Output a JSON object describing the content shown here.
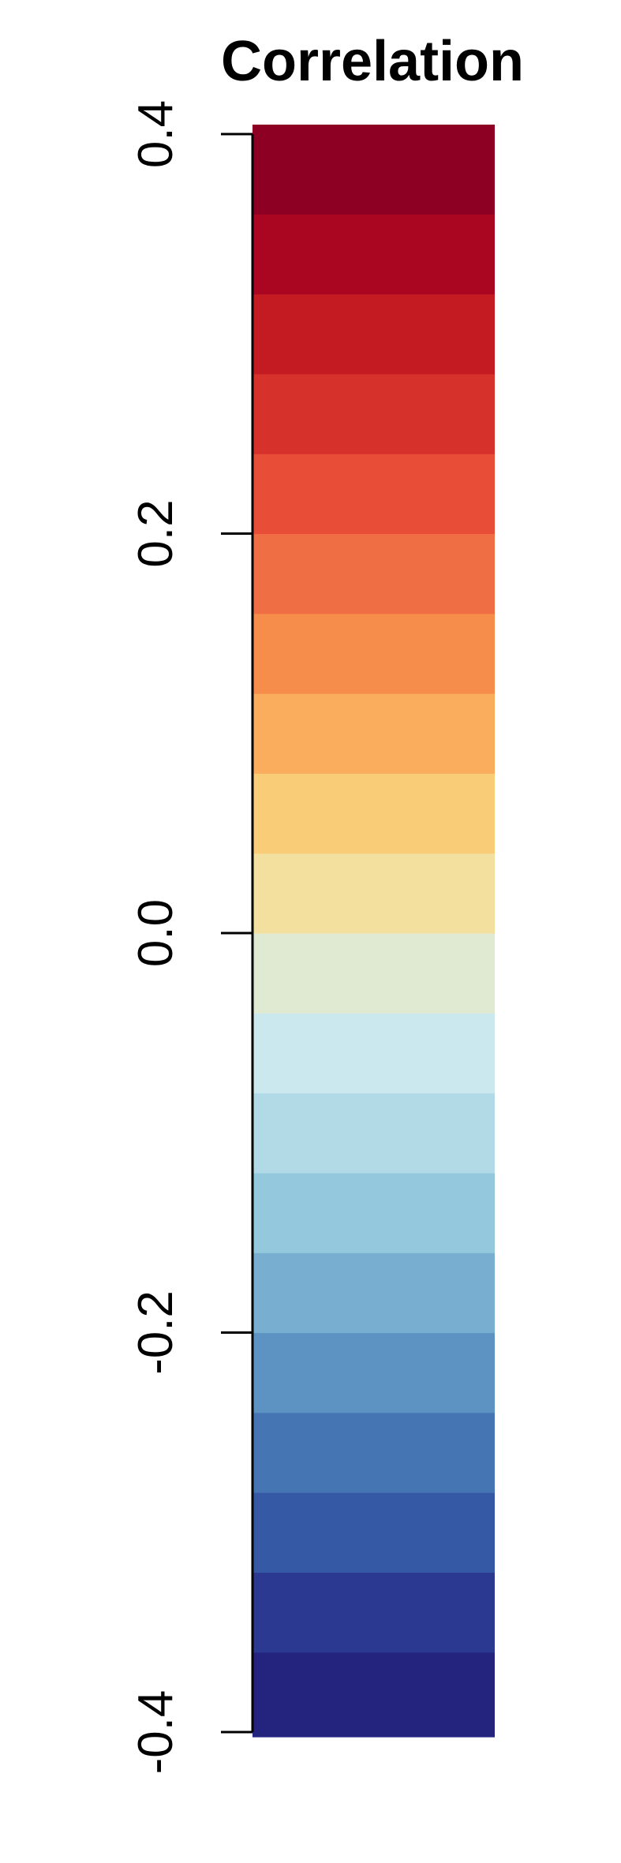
{
  "chart_data": {
    "type": "heatmap",
    "title": "Correlation",
    "xlabel": "",
    "ylabel": "",
    "ylim": [
      -0.4,
      0.4
    ],
    "ticks": [
      {
        "value": 0.4,
        "label": "0.4"
      },
      {
        "value": 0.2,
        "label": "0.2"
      },
      {
        "value": 0.0,
        "label": "0.0"
      },
      {
        "value": -0.2,
        "label": "-0.2"
      },
      {
        "value": -0.4,
        "label": "-0.4"
      }
    ],
    "grid": false,
    "bins": [
      {
        "from": -0.4,
        "to": -0.36,
        "color": "#24247f"
      },
      {
        "from": -0.36,
        "to": -0.32,
        "color": "#2b3990"
      },
      {
        "from": -0.32,
        "to": -0.28,
        "color": "#3659a5"
      },
      {
        "from": -0.28,
        "to": -0.24,
        "color": "#4675b4"
      },
      {
        "from": -0.24,
        "to": -0.2,
        "color": "#5d93c3"
      },
      {
        "from": -0.2,
        "to": -0.16,
        "color": "#78aecf"
      },
      {
        "from": -0.16,
        "to": -0.12,
        "color": "#94c9dd"
      },
      {
        "from": -0.12,
        "to": -0.08,
        "color": "#b2dae6"
      },
      {
        "from": -0.08,
        "to": -0.04,
        "color": "#cbe8ef"
      },
      {
        "from": -0.04,
        "to": 0.0,
        "color": "#e0ead3"
      },
      {
        "from": 0.0,
        "to": 0.04,
        "color": "#f3e09f"
      },
      {
        "from": 0.04,
        "to": 0.08,
        "color": "#f9cd77"
      },
      {
        "from": 0.08,
        "to": 0.12,
        "color": "#fbad5e"
      },
      {
        "from": 0.12,
        "to": 0.16,
        "color": "#f68d4a"
      },
      {
        "from": 0.16,
        "to": 0.2,
        "color": "#f06e43"
      },
      {
        "from": 0.2,
        "to": 0.24,
        "color": "#e84e37"
      },
      {
        "from": 0.24,
        "to": 0.28,
        "color": "#d7312b"
      },
      {
        "from": 0.28,
        "to": 0.32,
        "color": "#c41a21"
      },
      {
        "from": 0.32,
        "to": 0.36,
        "color": "#aa0521"
      },
      {
        "from": 0.36,
        "to": 0.4,
        "color": "#8d0023"
      }
    ]
  }
}
